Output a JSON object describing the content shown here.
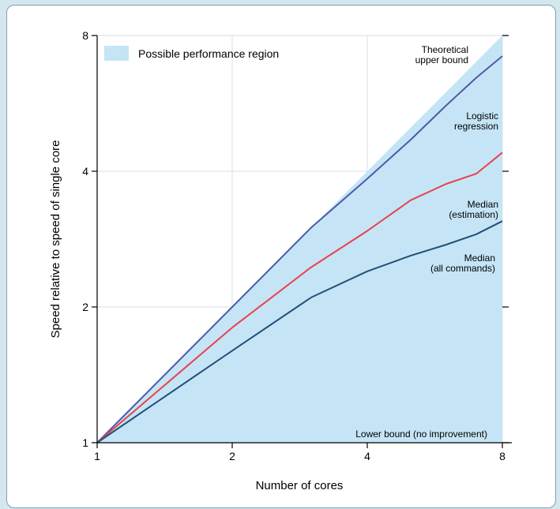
{
  "chart_data": {
    "type": "line",
    "xlabel": "Number of cores",
    "ylabel": "Speed relative to speed of single core",
    "x_scale": "log2",
    "y_scale": "log2",
    "xlim": [
      1,
      8
    ],
    "ylim": [
      1,
      8
    ],
    "x_ticks": [
      "1",
      "2",
      "4",
      "8"
    ],
    "y_ticks": [
      "1",
      "2",
      "4",
      "8"
    ],
    "grid": true,
    "legend": {
      "position": "top-left",
      "entries": [
        {
          "label": "Possible performance region",
          "color": "#c5e5f6"
        }
      ]
    },
    "region": {
      "name": "Possible performance region",
      "color": "#c5e5f6",
      "lower": [
        [
          1,
          1
        ],
        [
          8,
          1
        ]
      ],
      "upper": [
        [
          1,
          1
        ],
        [
          8,
          8
        ]
      ]
    },
    "series": [
      {
        "name": "Logistic regression",
        "color": "#4c5aa8",
        "points": [
          [
            1,
            1
          ],
          [
            2,
            2.0
          ],
          [
            3,
            3.0
          ],
          [
            4,
            3.85
          ],
          [
            5,
            4.7
          ],
          [
            6,
            5.6
          ],
          [
            7,
            6.45
          ],
          [
            8,
            7.2
          ]
        ]
      },
      {
        "name": "Median (estimation)",
        "color": "#e8424f",
        "points": [
          [
            1,
            1
          ],
          [
            2,
            1.8
          ],
          [
            3,
            2.45
          ],
          [
            4,
            2.95
          ],
          [
            5,
            3.45
          ],
          [
            6,
            3.75
          ],
          [
            7,
            3.95
          ],
          [
            8,
            4.4
          ]
        ]
      },
      {
        "name": "Median (all commands)",
        "color": "#22507a",
        "points": [
          [
            1,
            1
          ],
          [
            2,
            1.6
          ],
          [
            3,
            2.1
          ],
          [
            4,
            2.4
          ],
          [
            5,
            2.6
          ],
          [
            6,
            2.75
          ],
          [
            7,
            2.9
          ],
          [
            8,
            3.1
          ]
        ]
      }
    ],
    "annotations": [
      {
        "id": "upper",
        "lines": [
          "Theoretical",
          "upper bound"
        ]
      },
      {
        "id": "logit",
        "lines": [
          "Logistic",
          "regression"
        ]
      },
      {
        "id": "med-est",
        "lines": [
          "Median",
          "(estimation)"
        ]
      },
      {
        "id": "med-all",
        "lines": [
          "Median",
          "(all commands)"
        ]
      },
      {
        "id": "lower",
        "lines": [
          "Lower bound (no improvement)"
        ]
      }
    ],
    "colors": {
      "region": "#c5e5f6",
      "grid": "#e1e4ee",
      "axis": "#000000"
    }
  }
}
